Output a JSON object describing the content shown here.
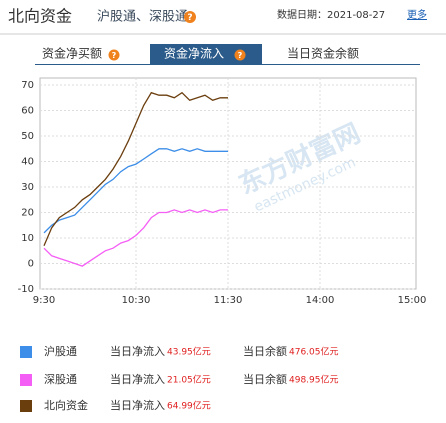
{
  "header": {
    "title": "北向资金",
    "subtitle": "沪股通、深股通",
    "help_icon": "?",
    "date": "数据日期：2021-08-27",
    "more": "更多"
  },
  "tabs": [
    "资金净买额",
    "资金净流入",
    "当日资金余额"
  ],
  "watermark": [
    "东方财富网",
    "eastmoney.com"
  ],
  "chart_data": {
    "type": "line",
    "x": [
      0,
      5,
      10,
      15,
      20,
      25,
      30,
      35,
      40,
      45,
      50,
      55,
      60,
      65,
      70,
      75,
      80,
      85,
      90,
      95,
      100,
      105,
      110,
      115,
      120
    ],
    "xlim": [
      0,
      240
    ],
    "xticks": [
      {
        "value": 0,
        "label": "9:30"
      },
      {
        "value": 60,
        "label": "10:30"
      },
      {
        "value": 120,
        "label": "11:30"
      },
      {
        "value": 180,
        "label": "14:00"
      },
      {
        "value": 240,
        "label": "15:00"
      }
    ],
    "ylim": [
      -10,
      70
    ],
    "yticks": [
      -10,
      0,
      10,
      20,
      30,
      40,
      50,
      60,
      70
    ],
    "grid": true,
    "series": [
      {
        "name": "沪股通",
        "color": "#3d8ee8",
        "values": [
          12,
          15,
          17,
          18,
          19,
          22,
          25,
          28,
          31,
          33,
          36,
          38,
          39,
          41,
          43,
          45,
          45,
          44,
          45,
          44,
          45,
          44,
          44,
          44,
          44
        ]
      },
      {
        "name": "深股通",
        "color": "#f55ef5",
        "values": [
          6,
          3,
          2,
          1,
          0,
          -1,
          1,
          3,
          5,
          6,
          8,
          9,
          11,
          14,
          18,
          20,
          20,
          21,
          20,
          21,
          20,
          21,
          20,
          21,
          21
        ]
      },
      {
        "name": "北向资金",
        "color": "#6b3e0e",
        "values": [
          7,
          14,
          18,
          20,
          22,
          25,
          27,
          30,
          33,
          37,
          42,
          48,
          55,
          62,
          67,
          66,
          66,
          65,
          67,
          64,
          65,
          66,
          64,
          65,
          65
        ]
      }
    ]
  },
  "summary_labels": {
    "net": "当日净流入",
    "balance": "当日余额"
  },
  "summary": [
    {
      "net": "43.95亿元",
      "balance": "476.05亿元"
    },
    {
      "net": "21.05亿元",
      "balance": "498.95亿元"
    },
    {
      "net": "64.99亿元"
    }
  ]
}
